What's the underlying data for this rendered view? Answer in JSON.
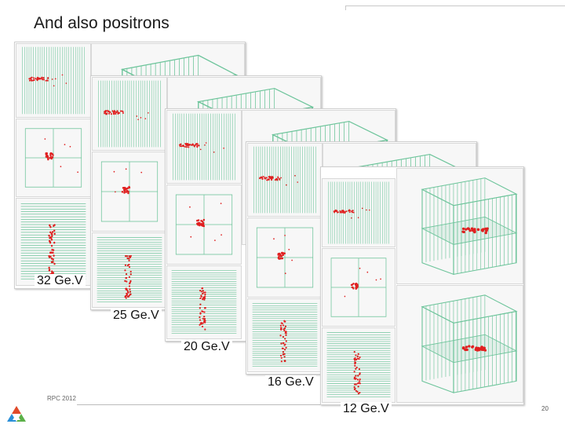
{
  "slide": {
    "title": "And also positrons",
    "footer": "RPC 2012",
    "page_number": "20"
  },
  "energies": [
    {
      "label": "32 Ge.V"
    },
    {
      "label": "25 Ge.V"
    },
    {
      "label": "20 Ge.V"
    },
    {
      "label": "16 Ge.V"
    },
    {
      "label": "12 Ge.V"
    }
  ],
  "colors": {
    "detector_lines": "#6cc49a",
    "hits": "#e02020",
    "logo": [
      "#e04a2a",
      "#2a8fd8",
      "#5bb048"
    ]
  },
  "icons": {
    "logo": "lab-logo-icon"
  }
}
